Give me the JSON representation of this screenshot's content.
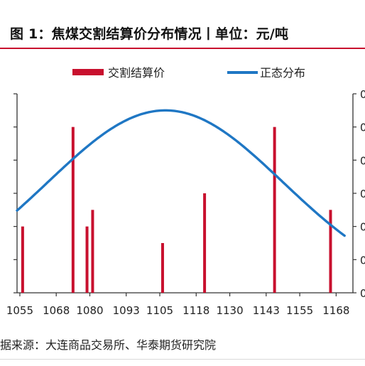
{
  "title": "图 1：焦煤交割结算价分布情况丨单位：元/吨",
  "source": "据来源：大连商品交易所、华泰期货研究院",
  "chart_data": {
    "type": "bar+line",
    "title": "图 1：焦煤交割结算价分布情况丨单位：元/吨",
    "legend": {
      "placement": "top",
      "entries": [
        {
          "name": "交割结算价",
          "kind": "bar",
          "color": "#c8102e"
        },
        {
          "name": "正态分布",
          "kind": "line",
          "color": "#1f77c4"
        }
      ]
    },
    "x_axis": {
      "ticks": [
        1055,
        1068,
        1080,
        1093,
        1105,
        1118,
        1130,
        1143,
        1155,
        1168
      ],
      "tick_labels": [
        "1055",
        "1068",
        "1080",
        "1093",
        "1105",
        "1118",
        "1130",
        "1143",
        "1155",
        "1168"
      ],
      "range": [
        1054,
        1174
      ]
    },
    "y_axis_left": {
      "range": [
        0,
        6
      ],
      "tick_count": 7,
      "tick_labels": []
    },
    "y_axis_right": {
      "tick_count": 7,
      "tick_labels": [
        "0",
        "0",
        "0",
        "0",
        "0",
        "0",
        "0"
      ]
    },
    "grid": false,
    "series": [
      {
        "name": "交割结算价",
        "type": "bar",
        "axis": "left",
        "color": "#c8102e",
        "points": [
          {
            "x": 1056,
            "y": 2
          },
          {
            "x": 1074,
            "y": 5
          },
          {
            "x": 1079,
            "y": 2
          },
          {
            "x": 1081,
            "y": 2.5
          },
          {
            "x": 1106,
            "y": 1.5
          },
          {
            "x": 1121,
            "y": 3
          },
          {
            "x": 1146,
            "y": 5
          },
          {
            "x": 1166,
            "y": 2.5
          }
        ]
      },
      {
        "name": "正态分布",
        "type": "line",
        "axis": "right",
        "color": "#1f77c4",
        "mean": 1107,
        "std": 42,
        "peak": 5.5,
        "x_range": [
          1054,
          1171
        ]
      }
    ]
  }
}
